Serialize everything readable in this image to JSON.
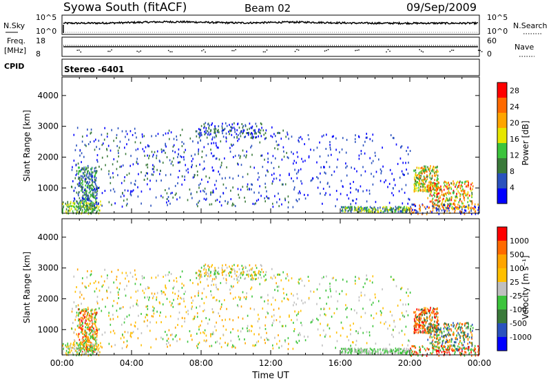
{
  "header": {
    "station": "Syowa South (fitACF)",
    "beam": "Beam 02",
    "date": "09/Sep/2009"
  },
  "panels": {
    "nsky": {
      "left_label": "N.Sky",
      "right_label": "N.Search",
      "left_ticks": [
        "10^5",
        "10^0"
      ],
      "right_ticks": [
        "10^5",
        "10^0"
      ]
    },
    "freq": {
      "left_label_1": "Freq.",
      "left_label_2": "[MHz]",
      "left_ticks": [
        "18",
        "8"
      ],
      "right_label": "Nave",
      "right_ticks": [
        "60",
        "0"
      ],
      "cpid_label": "CPID",
      "cpid_value": "Stereo -6401"
    }
  },
  "colors": {
    "power": [
      "#0000ff",
      "#2a52be",
      "#3a7a3a",
      "#3cc43c",
      "#e6e600",
      "#ffa500",
      "#ff6a00",
      "#ff0000"
    ],
    "velocity": [
      "#0000ff",
      "#2a52be",
      "#3a7a3a",
      "#3cc43c",
      "#c0c0c0",
      "#ffc000",
      "#ffa500",
      "#ff6a00",
      "#ff0000"
    ]
  },
  "chart_data": [
    {
      "type": "heatmap",
      "title": "",
      "ylabel": "Slant Range [km]",
      "xlabel": "",
      "ylim": [
        180,
        4600
      ],
      "xlim": [
        0,
        24
      ],
      "y_ticks": [
        "1000",
        "2000",
        "3000",
        "4000"
      ],
      "colorbar_label": "Power [dB]",
      "colorbar_ticks": [
        "4",
        "8",
        "12",
        "16",
        "20",
        "24",
        "28"
      ],
      "colorbar_range": [
        0,
        30
      ]
    },
    {
      "type": "heatmap",
      "title": "",
      "ylabel": "Slant Range [km]",
      "xlabel": "Time UT",
      "ylim": [
        180,
        4600
      ],
      "xlim": [
        0,
        24
      ],
      "y_ticks": [
        "1000",
        "2000",
        "3000",
        "4000"
      ],
      "x_ticks": [
        "00:00",
        "04:00",
        "08:00",
        "12:00",
        "16:00",
        "20:00",
        "00:00"
      ],
      "colorbar_label": "Velocity [m s⁻¹]",
      "colorbar_ticks": [
        "1000",
        "500",
        "100",
        "25",
        "-25",
        "-100",
        "-500",
        "-1000"
      ]
    }
  ]
}
